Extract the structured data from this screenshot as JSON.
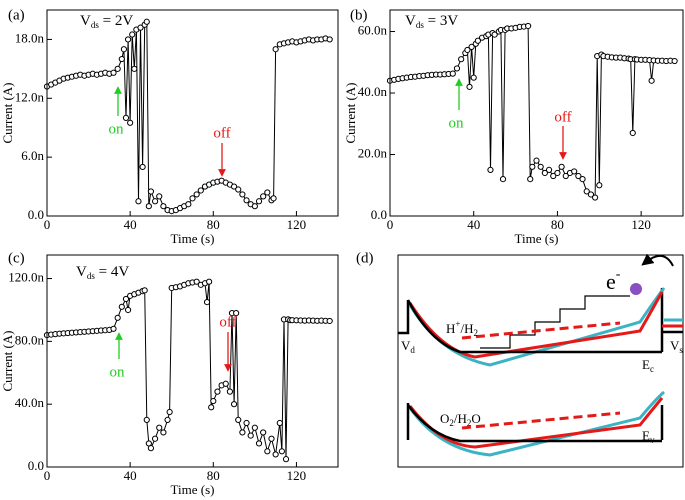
{
  "chart_data": [
    {
      "type": "line",
      "label": "(a)",
      "title_parts": {
        "main": "V",
        "sub": "ds",
        "rest": " = 2V"
      },
      "xlabel": "Time (s)",
      "ylabel": "Current (A)",
      "xlim": [
        0,
        140
      ],
      "xticks": [
        0,
        40,
        80,
        120
      ],
      "ylim": [
        0,
        21
      ],
      "yticks": [
        {
          "value": 0,
          "label": "0.0"
        },
        {
          "value": 6,
          "label": "6.0n"
        },
        {
          "value": 12,
          "label": "12.0n"
        },
        {
          "value": 18,
          "label": "18.0n"
        }
      ],
      "color": "#000000",
      "annotations": [
        {
          "text": "on",
          "color": "#22cc22"
        },
        {
          "text": "off",
          "color": "#e61919"
        }
      ],
      "x": [
        0,
        2,
        4,
        6,
        8,
        10,
        12,
        14,
        16,
        18,
        20,
        22,
        24,
        26,
        28,
        30,
        32,
        34,
        36,
        37,
        38,
        39,
        40,
        41,
        42,
        43,
        44,
        45,
        46,
        47,
        48,
        49,
        50,
        52,
        54,
        56,
        58,
        60,
        62,
        64,
        66,
        68,
        70,
        72,
        74,
        76,
        78,
        80,
        82,
        84,
        86,
        88,
        90,
        92,
        94,
        96,
        98,
        100,
        102,
        104,
        106,
        108,
        109,
        110,
        112,
        114,
        116,
        118,
        120,
        122,
        124,
        126,
        128,
        130,
        132,
        134,
        136
      ],
      "values": [
        13.2,
        13.4,
        13.6,
        13.8,
        14.0,
        14.1,
        14.2,
        14.3,
        14.4,
        14.3,
        14.4,
        14.5,
        14.4,
        14.5,
        14.6,
        14.5,
        14.6,
        15.0,
        16.0,
        17.0,
        10.0,
        18.0,
        9.5,
        18.5,
        15.0,
        19.0,
        1.5,
        19.2,
        5.0,
        19.5,
        19.8,
        1.0,
        2.5,
        1.5,
        2.0,
        1.0,
        0.6,
        0.5,
        0.6,
        0.8,
        1.0,
        1.2,
        1.8,
        2.2,
        2.6,
        3.0,
        3.2,
        3.4,
        3.5,
        3.6,
        3.4,
        3.2,
        3.0,
        2.7,
        2.2,
        1.6,
        1.2,
        1.0,
        1.5,
        2.0,
        2.4,
        1.6,
        1.8,
        17.0,
        17.5,
        17.6,
        17.7,
        17.8,
        17.7,
        17.8,
        17.9,
        18.0,
        17.9,
        18.0,
        18.0,
        18.1,
        18.0
      ]
    },
    {
      "type": "line",
      "label": "(b)",
      "title_parts": {
        "main": "V",
        "sub": "ds",
        "rest": " = 3V"
      },
      "xlabel": "Time (s)",
      "ylabel": "Current (A)",
      "xlim": [
        0,
        140
      ],
      "xticks": [
        0,
        40,
        80,
        120
      ],
      "ylim": [
        0,
        67
      ],
      "yticks": [
        {
          "value": 0,
          "label": "0.0"
        },
        {
          "value": 20,
          "label": "20.0n"
        },
        {
          "value": 40,
          "label": "40.0n"
        },
        {
          "value": 60,
          "label": "60.0n"
        }
      ],
      "color": "#000000",
      "annotations": [
        {
          "text": "on",
          "color": "#22cc22"
        },
        {
          "text": "off",
          "color": "#e61919"
        }
      ],
      "x": [
        0,
        2,
        4,
        6,
        8,
        10,
        12,
        14,
        16,
        18,
        20,
        22,
        24,
        26,
        28,
        30,
        32,
        34,
        36,
        37,
        38,
        39,
        40,
        41,
        42,
        44,
        46,
        47,
        48,
        49,
        50,
        52,
        53,
        54,
        55,
        56,
        58,
        60,
        62,
        64,
        66,
        67,
        68,
        70,
        72,
        74,
        76,
        78,
        80,
        82,
        84,
        86,
        88,
        90,
        92,
        94,
        96,
        98,
        99,
        100,
        101,
        102,
        104,
        106,
        108,
        110,
        112,
        114,
        115,
        116,
        117,
        118,
        120,
        122,
        124,
        125,
        126,
        128,
        130,
        132,
        134,
        136
      ],
      "values": [
        44,
        44.3,
        44.6,
        44.8,
        45,
        45.2,
        45.3,
        45.5,
        45.6,
        45.8,
        45.9,
        46,
        46,
        46.1,
        46.2,
        46.3,
        48,
        51,
        53,
        54,
        42,
        55,
        45,
        56,
        57,
        58,
        58.5,
        59,
        15,
        59.5,
        59,
        60,
        60.5,
        12,
        60.5,
        61,
        61,
        61.2,
        61.5,
        61.6,
        61.8,
        12,
        16,
        18,
        16,
        14,
        15,
        13,
        14,
        16,
        13,
        14,
        14.5,
        13,
        12,
        8,
        7,
        6,
        52,
        10,
        52.5,
        52,
        51.8,
        51.6,
        51.5,
        51.5,
        51.3,
        51.2,
        51,
        27,
        51,
        50.9,
        50.8,
        50.8,
        50.7,
        44,
        50.6,
        50.5,
        50.5,
        50.4,
        50.5,
        50.4
      ]
    },
    {
      "type": "line",
      "label": "(c)",
      "title_parts": {
        "main": "V",
        "sub": "ds",
        "rest": " = 4V"
      },
      "xlabel": "Time (s)",
      "ylabel": "Current (A)",
      "xlim": [
        0,
        140
      ],
      "xticks": [
        0,
        40,
        80,
        120
      ],
      "ylim": [
        0,
        135
      ],
      "yticks": [
        {
          "value": 0,
          "label": "0.0"
        },
        {
          "value": 40,
          "label": "40.0n"
        },
        {
          "value": 80,
          "label": "80.0n"
        },
        {
          "value": 120,
          "label": "120.0n"
        }
      ],
      "color": "#000000",
      "annotations": [
        {
          "text": "on",
          "color": "#22cc22"
        },
        {
          "text": "off",
          "color": "#e61919"
        }
      ],
      "x": [
        0,
        2,
        4,
        6,
        8,
        10,
        12,
        14,
        16,
        18,
        20,
        22,
        24,
        26,
        28,
        30,
        32,
        34,
        36,
        38,
        39,
        40,
        42,
        44,
        46,
        47,
        48,
        49,
        50,
        52,
        54,
        56,
        58,
        59,
        60,
        62,
        64,
        66,
        68,
        70,
        72,
        74,
        76,
        77,
        78,
        79,
        80,
        82,
        84,
        86,
        88,
        89,
        90,
        91,
        92,
        94,
        96,
        98,
        100,
        102,
        104,
        106,
        108,
        110,
        112,
        113,
        114,
        115,
        116,
        117,
        118,
        120,
        122,
        124,
        126,
        128,
        130,
        132,
        134,
        136
      ],
      "values": [
        84,
        84.3,
        84.6,
        84.9,
        85.1,
        85.3,
        85.5,
        85.7,
        85.9,
        86.1,
        86.3,
        86.5,
        86.7,
        86.9,
        87.1,
        87.3,
        88,
        95,
        102,
        107,
        100,
        109,
        110,
        111,
        112,
        112.5,
        30,
        15,
        12,
        18,
        25,
        22,
        30,
        35,
        114,
        114.5,
        115,
        116,
        117,
        117.5,
        118,
        116,
        117,
        105,
        118,
        38,
        42,
        48,
        52,
        53,
        48,
        98,
        40,
        98,
        30,
        22,
        28,
        20,
        25,
        15,
        22,
        10,
        18,
        8,
        28,
        10,
        94,
        5,
        94,
        93.5,
        93.5,
        93.4,
        93.3,
        93.2,
        93.3,
        93.2,
        93.1,
        93.2,
        93.1,
        93
      ]
    }
  ],
  "diagram": {
    "label": "(d)",
    "electron": {
      "symbol": "e",
      "charge": "-"
    },
    "redox_upper": {
      "a": "H",
      "a_sup": "+",
      "b": "/H",
      "b_sub": "2"
    },
    "redox_lower": {
      "a": "O",
      "a_sub": "2",
      "b": "/H",
      "b_sub": "2",
      "c": "O"
    },
    "drain": {
      "main": "V",
      "sub": "d"
    },
    "source": {
      "main": "V",
      "sub": "s"
    },
    "conduction": {
      "main": "E",
      "sub": "c"
    },
    "valence": {
      "main": "E",
      "sub": "v"
    }
  }
}
